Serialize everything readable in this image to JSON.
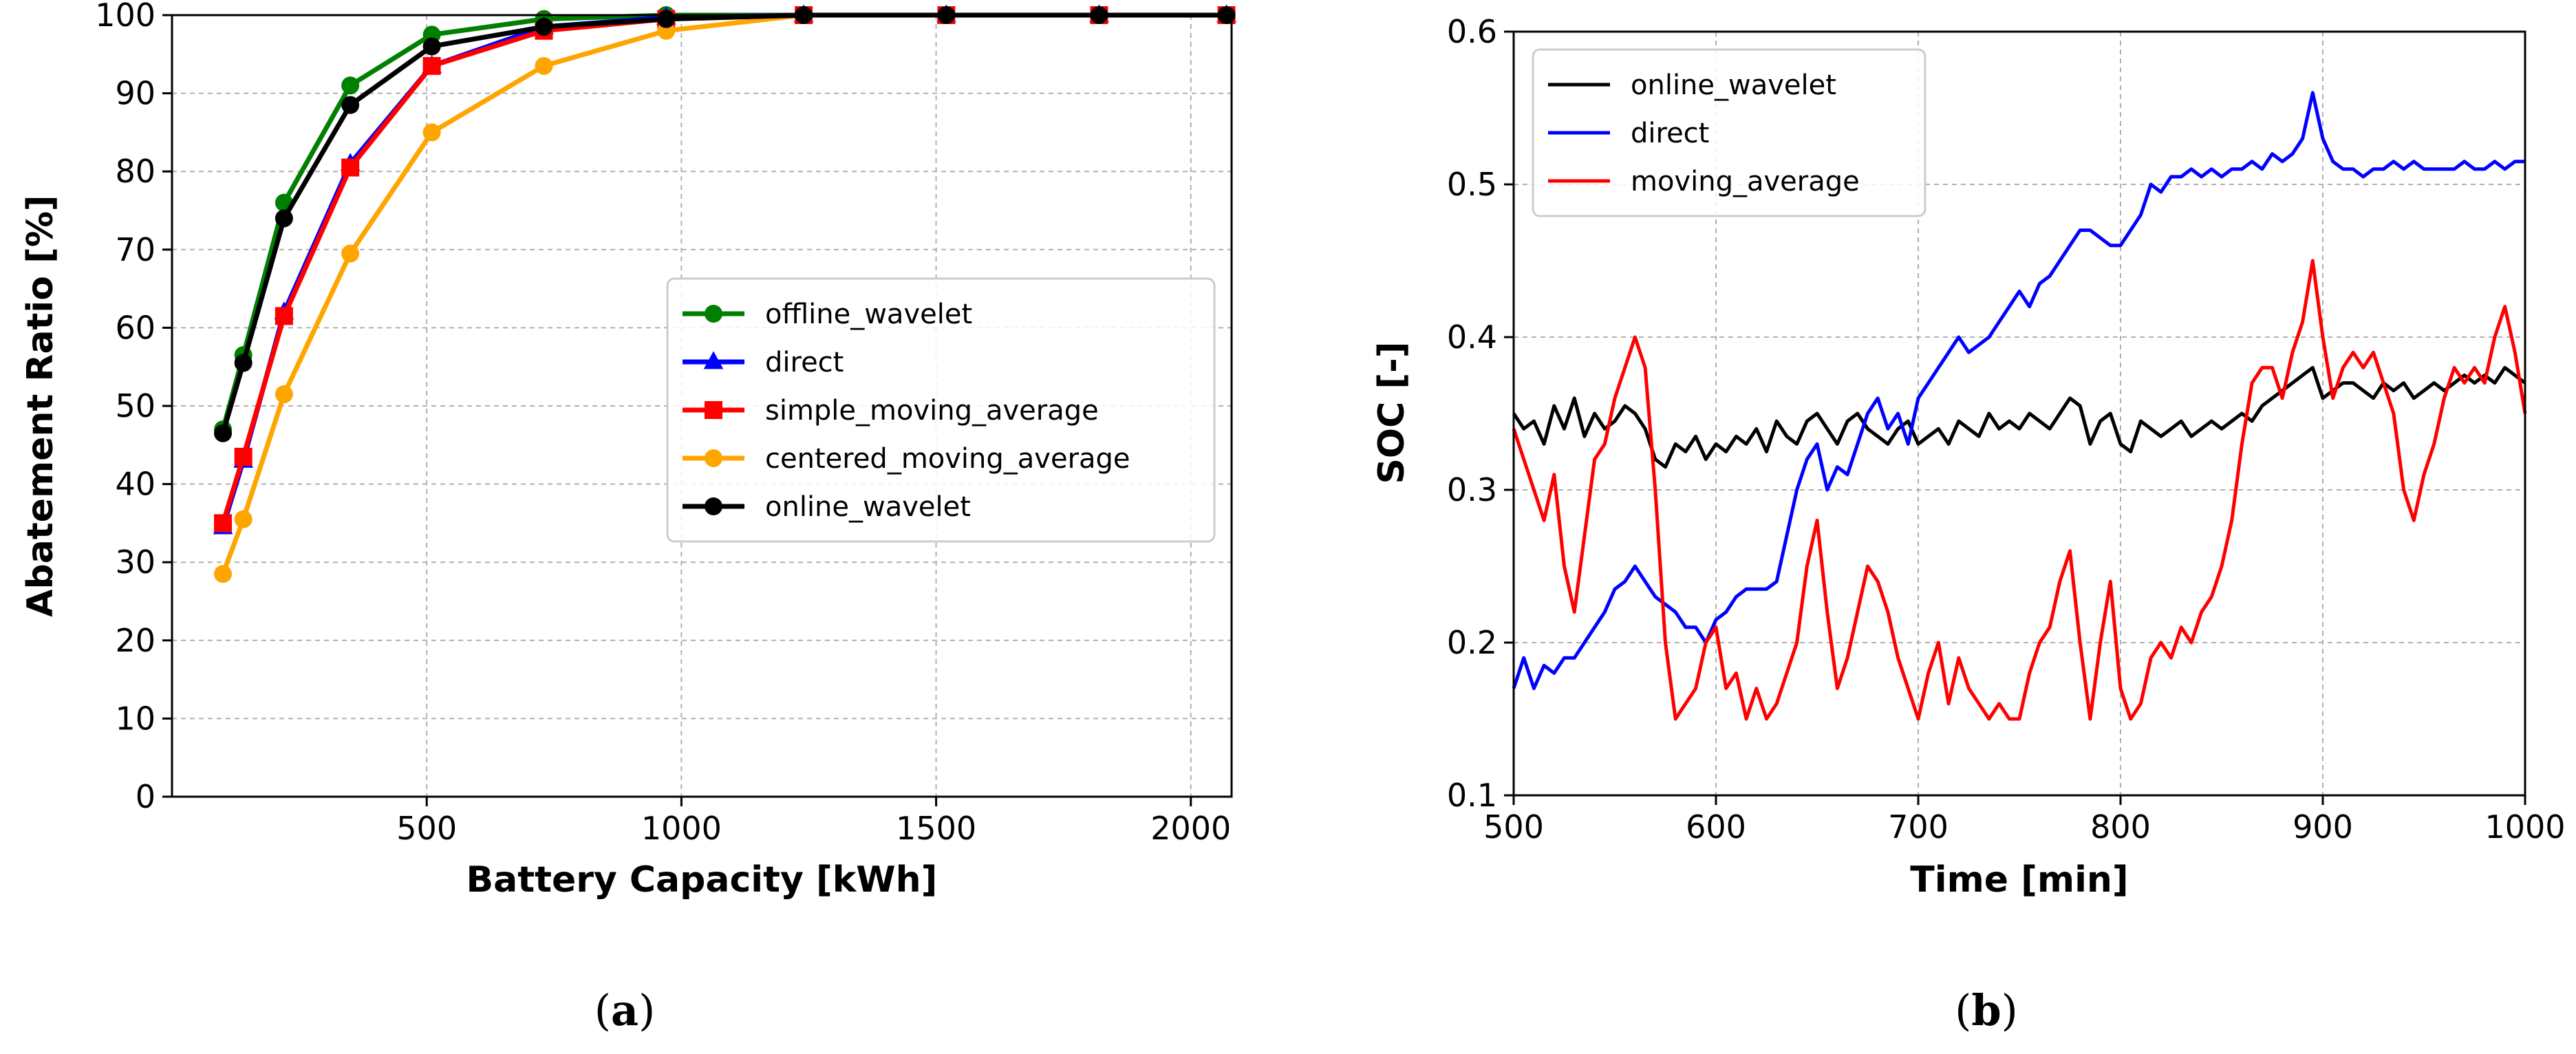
{
  "chart_data": [
    {
      "type": "line",
      "caption": [
        "(",
        "a",
        ")"
      ],
      "xlabel": "Battery Capacity [kWh]",
      "ylabel": "Abatement Ratio [%]",
      "xlim": [
        0,
        2080
      ],
      "ylim": [
        0,
        100
      ],
      "xticks": [
        500,
        1000,
        1500,
        2000
      ],
      "yticks": [
        0,
        10,
        20,
        30,
        40,
        50,
        60,
        70,
        80,
        90,
        100
      ],
      "grid": true,
      "legend_position": "center-right",
      "series": [
        {
          "name": "offline_wavelet",
          "color": "#008000",
          "marker": "circle",
          "x": [
            100,
            140,
            220,
            350,
            510,
            730,
            970,
            1240,
            1520,
            1820,
            2070
          ],
          "y": [
            47,
            56.5,
            76,
            91,
            97.5,
            99.5,
            100,
            100,
            100,
            100,
            100
          ]
        },
        {
          "name": "direct",
          "color": "#0000ff",
          "marker": "triangle",
          "x": [
            100,
            140,
            220,
            350,
            510,
            730,
            970,
            1240,
            1520,
            1820,
            2070
          ],
          "y": [
            34.5,
            43,
            62,
            81,
            93.5,
            98.5,
            99.7,
            100,
            100,
            100,
            100
          ]
        },
        {
          "name": "simple_moving_average",
          "color": "#ff0000",
          "marker": "square",
          "x": [
            100,
            140,
            220,
            350,
            510,
            730,
            970,
            1240,
            1520,
            1820,
            2070
          ],
          "y": [
            35,
            43.5,
            61.5,
            80.5,
            93.5,
            98,
            99.5,
            100,
            100,
            100,
            100
          ]
        },
        {
          "name": "centered_moving_average",
          "color": "#ffa500",
          "marker": "circle",
          "x": [
            100,
            140,
            220,
            350,
            510,
            730,
            970,
            1240,
            1520,
            1820,
            2070
          ],
          "y": [
            28.5,
            35.5,
            51.5,
            69.5,
            85,
            93.5,
            98,
            100,
            100,
            100,
            100
          ]
        },
        {
          "name": "online_wavelet",
          "color": "#000000",
          "marker": "circle",
          "x": [
            100,
            140,
            220,
            350,
            510,
            730,
            970,
            1240,
            1520,
            1820,
            2070
          ],
          "y": [
            46.5,
            55.5,
            74,
            88.5,
            96,
            98.5,
            99.5,
            100,
            100,
            100,
            100
          ]
        }
      ]
    },
    {
      "type": "line",
      "caption": [
        "(",
        "b",
        ")"
      ],
      "xlabel": "Time [min]",
      "ylabel": "SOC [-]",
      "xlim": [
        500,
        1000
      ],
      "ylim": [
        0.1,
        0.6
      ],
      "xticks": [
        500,
        600,
        700,
        800,
        900,
        1000
      ],
      "yticks": [
        0.1,
        0.2,
        0.3,
        0.4,
        0.5,
        0.6
      ],
      "grid": true,
      "legend_position": "top-left",
      "series": [
        {
          "name": "online_wavelet",
          "color": "#000000",
          "x": [
            500,
            505,
            510,
            515,
            520,
            525,
            530,
            535,
            540,
            545,
            550,
            555,
            560,
            565,
            570,
            575,
            580,
            585,
            590,
            595,
            600,
            605,
            610,
            615,
            620,
            625,
            630,
            635,
            640,
            645,
            650,
            655,
            660,
            665,
            670,
            675,
            680,
            685,
            690,
            695,
            700,
            705,
            710,
            715,
            720,
            725,
            730,
            735,
            740,
            745,
            750,
            755,
            760,
            765,
            770,
            775,
            780,
            785,
            790,
            795,
            800,
            805,
            810,
            815,
            820,
            825,
            830,
            835,
            840,
            845,
            850,
            855,
            860,
            865,
            870,
            875,
            880,
            885,
            890,
            895,
            900,
            905,
            910,
            915,
            920,
            925,
            930,
            935,
            940,
            945,
            950,
            955,
            960,
            965,
            970,
            975,
            980,
            985,
            990,
            995,
            1000
          ],
          "y": [
            0.35,
            0.34,
            0.345,
            0.33,
            0.355,
            0.34,
            0.36,
            0.335,
            0.35,
            0.34,
            0.345,
            0.355,
            0.35,
            0.34,
            0.32,
            0.315,
            0.33,
            0.325,
            0.335,
            0.32,
            0.33,
            0.325,
            0.335,
            0.33,
            0.34,
            0.325,
            0.345,
            0.335,
            0.33,
            0.345,
            0.35,
            0.34,
            0.33,
            0.345,
            0.35,
            0.34,
            0.335,
            0.33,
            0.34,
            0.345,
            0.33,
            0.335,
            0.34,
            0.33,
            0.345,
            0.34,
            0.335,
            0.35,
            0.34,
            0.345,
            0.34,
            0.35,
            0.345,
            0.34,
            0.35,
            0.36,
            0.355,
            0.33,
            0.345,
            0.35,
            0.33,
            0.325,
            0.345,
            0.34,
            0.335,
            0.34,
            0.345,
            0.335,
            0.34,
            0.345,
            0.34,
            0.345,
            0.35,
            0.345,
            0.355,
            0.36,
            0.365,
            0.37,
            0.375,
            0.38,
            0.36,
            0.365,
            0.37,
            0.37,
            0.365,
            0.36,
            0.37,
            0.365,
            0.37,
            0.36,
            0.365,
            0.37,
            0.365,
            0.37,
            0.375,
            0.37,
            0.375,
            0.37,
            0.38,
            0.375,
            0.37
          ]
        },
        {
          "name": "direct",
          "color": "#0000ff",
          "x": [
            500,
            505,
            510,
            515,
            520,
            525,
            530,
            535,
            540,
            545,
            550,
            555,
            560,
            565,
            570,
            575,
            580,
            585,
            590,
            595,
            600,
            605,
            610,
            615,
            620,
            625,
            630,
            635,
            640,
            645,
            650,
            655,
            660,
            665,
            670,
            675,
            680,
            685,
            690,
            695,
            700,
            705,
            710,
            715,
            720,
            725,
            730,
            735,
            740,
            745,
            750,
            755,
            760,
            765,
            770,
            775,
            780,
            785,
            790,
            795,
            800,
            805,
            810,
            815,
            820,
            825,
            830,
            835,
            840,
            845,
            850,
            855,
            860,
            865,
            870,
            875,
            880,
            885,
            890,
            895,
            900,
            905,
            910,
            915,
            920,
            925,
            930,
            935,
            940,
            945,
            950,
            955,
            960,
            965,
            970,
            975,
            980,
            985,
            990,
            995,
            1000
          ],
          "y": [
            0.17,
            0.19,
            0.17,
            0.185,
            0.18,
            0.19,
            0.19,
            0.2,
            0.21,
            0.22,
            0.235,
            0.24,
            0.25,
            0.24,
            0.23,
            0.225,
            0.22,
            0.21,
            0.21,
            0.2,
            0.215,
            0.22,
            0.23,
            0.235,
            0.235,
            0.235,
            0.24,
            0.27,
            0.3,
            0.32,
            0.33,
            0.3,
            0.315,
            0.31,
            0.33,
            0.35,
            0.36,
            0.34,
            0.35,
            0.33,
            0.36,
            0.37,
            0.38,
            0.39,
            0.4,
            0.39,
            0.395,
            0.4,
            0.41,
            0.42,
            0.43,
            0.42,
            0.435,
            0.44,
            0.45,
            0.46,
            0.47,
            0.47,
            0.465,
            0.46,
            0.46,
            0.47,
            0.48,
            0.5,
            0.495,
            0.505,
            0.505,
            0.51,
            0.505,
            0.51,
            0.505,
            0.51,
            0.51,
            0.515,
            0.51,
            0.52,
            0.515,
            0.52,
            0.53,
            0.56,
            0.53,
            0.515,
            0.51,
            0.51,
            0.505,
            0.51,
            0.51,
            0.515,
            0.51,
            0.515,
            0.51,
            0.51,
            0.51,
            0.51,
            0.515,
            0.51,
            0.51,
            0.515,
            0.51,
            0.515,
            0.515
          ]
        },
        {
          "name": "moving_average",
          "color": "#ff0000",
          "x": [
            500,
            505,
            510,
            515,
            520,
            525,
            530,
            535,
            540,
            545,
            550,
            555,
            560,
            565,
            570,
            575,
            580,
            585,
            590,
            595,
            600,
            605,
            610,
            615,
            620,
            625,
            630,
            635,
            640,
            645,
            650,
            655,
            660,
            665,
            670,
            675,
            680,
            685,
            690,
            695,
            700,
            705,
            710,
            715,
            720,
            725,
            730,
            735,
            740,
            745,
            750,
            755,
            760,
            765,
            770,
            775,
            780,
            785,
            790,
            795,
            800,
            805,
            810,
            815,
            820,
            825,
            830,
            835,
            840,
            845,
            850,
            855,
            860,
            865,
            870,
            875,
            880,
            885,
            890,
            895,
            900,
            905,
            910,
            915,
            920,
            925,
            930,
            935,
            940,
            945,
            950,
            955,
            960,
            965,
            970,
            975,
            980,
            985,
            990,
            995,
            1000
          ],
          "y": [
            0.34,
            0.32,
            0.3,
            0.28,
            0.31,
            0.25,
            0.22,
            0.27,
            0.32,
            0.33,
            0.36,
            0.38,
            0.4,
            0.38,
            0.3,
            0.2,
            0.15,
            0.16,
            0.17,
            0.2,
            0.21,
            0.17,
            0.18,
            0.15,
            0.17,
            0.15,
            0.16,
            0.18,
            0.2,
            0.25,
            0.28,
            0.22,
            0.17,
            0.19,
            0.22,
            0.25,
            0.24,
            0.22,
            0.19,
            0.17,
            0.15,
            0.18,
            0.2,
            0.16,
            0.19,
            0.17,
            0.16,
            0.15,
            0.16,
            0.15,
            0.15,
            0.18,
            0.2,
            0.21,
            0.24,
            0.26,
            0.2,
            0.15,
            0.2,
            0.24,
            0.17,
            0.15,
            0.16,
            0.19,
            0.2,
            0.19,
            0.21,
            0.2,
            0.22,
            0.23,
            0.25,
            0.28,
            0.33,
            0.37,
            0.38,
            0.38,
            0.36,
            0.39,
            0.41,
            0.45,
            0.4,
            0.36,
            0.38,
            0.39,
            0.38,
            0.39,
            0.37,
            0.35,
            0.3,
            0.28,
            0.31,
            0.33,
            0.36,
            0.38,
            0.37,
            0.38,
            0.37,
            0.4,
            0.42,
            0.39,
            0.35
          ]
        }
      ]
    }
  ]
}
